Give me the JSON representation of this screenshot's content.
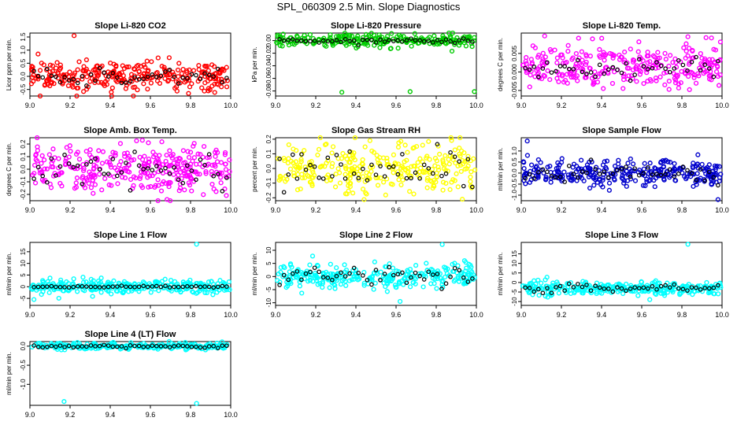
{
  "title": "SPL_060309  2.5 Min. Slope Diagnostics",
  "chart_data": [
    {
      "type": "scatter",
      "title": "Slope Li-820 CO2",
      "ylabel": "Licor ppm per min.",
      "xlim": [
        9.0,
        10.0
      ],
      "ylim": [
        -0.75,
        1.65
      ],
      "xticks": [
        "9.0",
        "9.2",
        "9.4",
        "9.6",
        "9.8",
        "10.0"
      ],
      "yticks": [
        -0.5,
        0.0,
        0.5,
        1.0,
        1.5
      ],
      "ytick_labels": [
        "-0.5",
        "0.0",
        "0.5",
        "1.0",
        "1.5"
      ],
      "color": "#ff0000",
      "band_center": 0.0,
      "band_spread": 0.3,
      "n_points": 300,
      "outliers": [
        {
          "x": 9.22,
          "y": 1.55
        },
        {
          "x": 9.79,
          "y": -0.65
        }
      ],
      "black_center": 0.0,
      "black_spread": 0.15
    },
    {
      "type": "scatter",
      "title": "Slope Li-820 Pressure",
      "ylabel": "kPa per min.",
      "xlim": [
        9.0,
        10.0
      ],
      "ylim": [
        -0.088,
        0.012
      ],
      "xticks": [
        "9.0",
        "9.2",
        "9.4",
        "9.6",
        "9.8",
        "10.0"
      ],
      "yticks": [
        -0.08,
        -0.06,
        -0.04,
        -0.02,
        0.0
      ],
      "ytick_labels": [
        "-0.08",
        "-0.06",
        "-0.04",
        "-0.02",
        "0.00"
      ],
      "color": "#00cc00",
      "band_center": 0.0,
      "band_spread": 0.005,
      "n_points": 250,
      "outliers": [
        {
          "x": 9.33,
          "y": -0.082
        },
        {
          "x": 9.67,
          "y": -0.081
        },
        {
          "x": 9.99,
          "y": -0.081
        }
      ],
      "black_center": 0.0,
      "black_spread": 0.002
    },
    {
      "type": "scatter",
      "title": "Slope Li-820 Temp.",
      "ylabel": "degrees C per min.",
      "xlim": [
        9.0,
        10.0
      ],
      "ylim": [
        -0.0065,
        0.0105
      ],
      "xticks": [
        "9.0",
        "9.2",
        "9.4",
        "9.6",
        "9.8",
        "10.0"
      ],
      "yticks": [
        -0.005,
        0.0,
        0.005
      ],
      "ytick_labels": [
        "-0.005",
        "0.000",
        "0.005"
      ],
      "color": "#ff00ff",
      "band_center": 0.0015,
      "band_spread": 0.003,
      "n_points": 300,
      "outliers": [
        {
          "x": 9.83,
          "y": 0.0095
        }
      ],
      "black_center": 0.0005,
      "black_spread": 0.0015
    },
    {
      "type": "scatter",
      "title": "Slope Amb. Box Temp.",
      "ylabel": "degrees C per min.",
      "xlim": [
        9.0,
        10.0
      ],
      "ylim": [
        -0.25,
        0.25
      ],
      "xticks": [
        "9.0",
        "9.2",
        "9.4",
        "9.6",
        "9.8",
        "10.0"
      ],
      "yticks": [
        -0.2,
        -0.1,
        0.0,
        0.1,
        0.2
      ],
      "ytick_labels": [
        "-0.2",
        "-0.1",
        "0.0",
        "0.1",
        "0.2"
      ],
      "color": "#ff00ff",
      "band_center": 0.0,
      "band_spread": 0.09,
      "n_points": 320,
      "outliers": [
        {
          "x": 9.56,
          "y": 0.23
        },
        {
          "x": 9.59,
          "y": 0.21
        }
      ],
      "black_center": 0.0,
      "black_spread": 0.06
    },
    {
      "type": "scatter",
      "title": "Slope Gas Stream RH",
      "ylabel": "percent per min.",
      "xlim": [
        9.0,
        10.0
      ],
      "ylim": [
        -0.22,
        0.21
      ],
      "xticks": [
        "9.0",
        "9.2",
        "9.4",
        "9.6",
        "9.8",
        "10.0"
      ],
      "yticks": [
        -0.2,
        -0.1,
        0.0,
        0.1,
        0.2
      ],
      "ytick_labels": [
        "-0.2",
        "-0.1",
        "0.0",
        "0.1",
        "0.2"
      ],
      "color": "#ffff00",
      "band_center": 0.0,
      "band_spread": 0.08,
      "n_points": 300,
      "outliers": [
        {
          "x": 9.47,
          "y": 0.19
        },
        {
          "x": 9.93,
          "y": -0.21
        }
      ],
      "black_center": 0.0,
      "black_spread": 0.07
    },
    {
      "type": "scatter",
      "title": "Slope Sample Flow",
      "ylabel": "ml/min per min.",
      "xlim": [
        9.0,
        10.0
      ],
      "ylim": [
        -1.25,
        1.6
      ],
      "xticks": [
        "9.0",
        "9.2",
        "9.4",
        "9.6",
        "9.8",
        "10.0"
      ],
      "yticks": [
        -1.0,
        -0.5,
        0.0,
        0.5,
        1.0
      ],
      "ytick_labels": [
        "-1.0",
        "-0.5",
        "0.0",
        "0.5",
        "1.0"
      ],
      "color": "#0000cc",
      "band_center": 0.0,
      "band_spread": 0.3,
      "n_points": 300,
      "outliers": [
        {
          "x": 9.03,
          "y": 1.45
        },
        {
          "x": 9.98,
          "y": -1.2
        }
      ],
      "black_center": 0.0,
      "black_spread": 0.2
    },
    {
      "type": "scatter",
      "title": "Slope Line 1 Flow",
      "ylabel": "ml/min per min.",
      "xlim": [
        9.0,
        10.0
      ],
      "ylim": [
        -8,
        19
      ],
      "xticks": [
        "9.0",
        "9.2",
        "9.4",
        "9.6",
        "9.8",
        "10.0"
      ],
      "yticks": [
        -5,
        0,
        5,
        10,
        15
      ],
      "ytick_labels": [
        "-5",
        "0",
        "5",
        "10",
        "15"
      ],
      "color": "#00ffff",
      "band_center": 0.0,
      "band_spread": 1.4,
      "n_points": 300,
      "outliers": [
        {
          "x": 9.83,
          "y": 18.2
        },
        {
          "x": 9.02,
          "y": -5.5
        }
      ],
      "black_center": 0.0,
      "black_spread": 0.15
    },
    {
      "type": "scatter",
      "title": "Slope Line 2 Flow",
      "ylabel": "ml/min per min.",
      "xlim": [
        9.0,
        10.0
      ],
      "ylim": [
        -11,
        13
      ],
      "xticks": [
        "9.0",
        "9.2",
        "9.4",
        "9.6",
        "9.8",
        "10.0"
      ],
      "yticks": [
        -10,
        -5,
        0,
        5,
        10
      ],
      "ytick_labels": [
        "-10",
        "-5",
        "0",
        "5",
        "10"
      ],
      "color": "#00ffff",
      "band_center": 0.0,
      "band_spread": 2.2,
      "n_points": 300,
      "outliers": [
        {
          "x": 9.83,
          "y": 12.2
        },
        {
          "x": 9.62,
          "y": -9.5
        }
      ],
      "black_center": 0.5,
      "black_spread": 1.8
    },
    {
      "type": "scatter",
      "title": "Slope Line 3 Flow",
      "ylabel": "ml/min per min.",
      "xlim": [
        9.0,
        10.0
      ],
      "ylim": [
        -12,
        21
      ],
      "xticks": [
        "9.0",
        "9.2",
        "9.4",
        "9.6",
        "9.8",
        "10.0"
      ],
      "yticks": [
        -10,
        -5,
        0,
        5,
        10,
        15
      ],
      "ytick_labels": [
        "-10",
        "-5",
        "0",
        "5",
        "10",
        "15"
      ],
      "color": "#00ffff",
      "band_center": -3.0,
      "band_spread": 1.6,
      "n_points": 300,
      "outliers": [
        {
          "x": 9.83,
          "y": 20
        },
        {
          "x": 9.64,
          "y": -9
        }
      ],
      "black_center": -2.5,
      "black_spread": 1.2
    },
    {
      "type": "scatter",
      "title": "Slope Line 4 (LT) Flow",
      "ylabel": "ml/min per min.",
      "xlim": [
        9.0,
        10.0
      ],
      "ylim": [
        -1.55,
        0.12
      ],
      "xticks": [
        "9.0",
        "9.2",
        "9.4",
        "9.6",
        "9.8",
        "10.0"
      ],
      "yticks": [
        -1.0,
        -0.5,
        0.0
      ],
      "ytick_labels": [
        "-1.0",
        "-0.5",
        "0.0"
      ],
      "color": "#00ffff",
      "band_center": 0.0,
      "band_spread": 0.04,
      "n_points": 300,
      "outliers": [
        {
          "x": 9.17,
          "y": -1.45
        },
        {
          "x": 9.83,
          "y": -1.5
        }
      ],
      "black_center": 0.0,
      "black_spread": 0.02
    }
  ]
}
